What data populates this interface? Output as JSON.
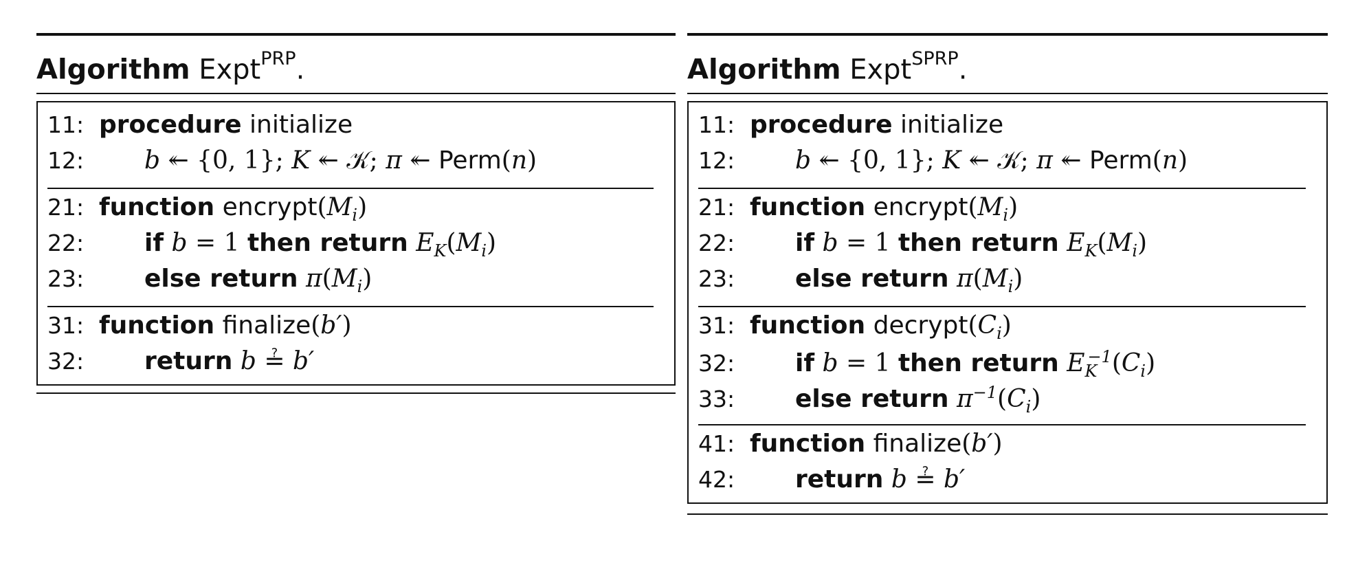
{
  "algorithms": [
    {
      "heading_keyword": "Algorithm",
      "heading_name": "Expt",
      "heading_sup": "PRP",
      "heading_period": ".",
      "sections": [
        [
          {
            "num": "11:",
            "indent": false,
            "text": "procedure initialize"
          },
          {
            "num": "12:",
            "indent": true,
            "text": "b ↞ {0,1}; K ↞ 𝒦; π ↞ Perm(n)"
          }
        ],
        [
          {
            "num": "21:",
            "indent": false,
            "text": "function encrypt(M_i)"
          },
          {
            "num": "22:",
            "indent": true,
            "text": "if b = 1 then return E_K(M_i)"
          },
          {
            "num": "23:",
            "indent": true,
            "text": "else return π(M_i)"
          }
        ],
        [
          {
            "num": "31:",
            "indent": false,
            "text": "function finalize(b′)"
          },
          {
            "num": "32:",
            "indent": true,
            "text": "return b ≟ b′"
          }
        ]
      ]
    },
    {
      "heading_keyword": "Algorithm",
      "heading_name": "Expt",
      "heading_sup": "SPRP",
      "heading_period": ".",
      "sections": [
        [
          {
            "num": "11:",
            "indent": false,
            "text": "procedure initialize"
          },
          {
            "num": "12:",
            "indent": true,
            "text": "b ↞ {0,1}; K ↞ 𝒦; π ↞ Perm(n)"
          }
        ],
        [
          {
            "num": "21:",
            "indent": false,
            "text": "function encrypt(M_i)"
          },
          {
            "num": "22:",
            "indent": true,
            "text": "if b = 1 then return E_K(M_i)"
          },
          {
            "num": "23:",
            "indent": true,
            "text": "else return π(M_i)"
          }
        ],
        [
          {
            "num": "31:",
            "indent": false,
            "text": "function decrypt(C_i)"
          },
          {
            "num": "32:",
            "indent": true,
            "text": "if b = 1 then return E_K^{-1}(C_i)"
          },
          {
            "num": "33:",
            "indent": true,
            "text": "else return π^{-1}(C_i)"
          }
        ],
        [
          {
            "num": "41:",
            "indent": false,
            "text": "function finalize(b′)"
          },
          {
            "num": "42:",
            "indent": true,
            "text": "return b ≟ b′"
          }
        ]
      ]
    }
  ]
}
